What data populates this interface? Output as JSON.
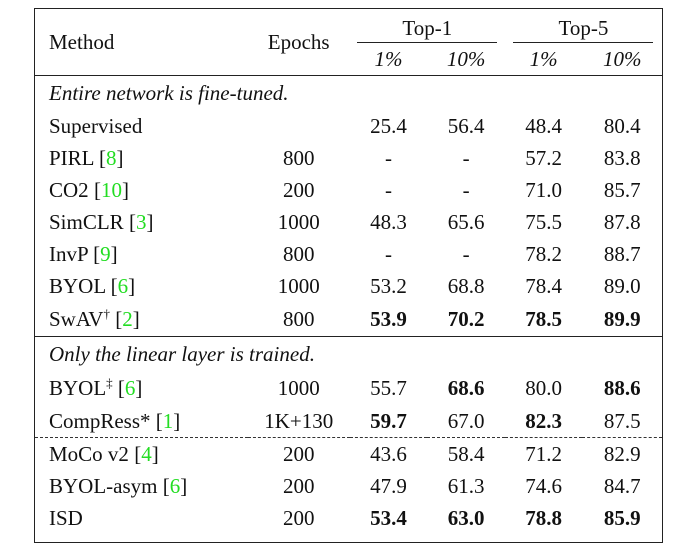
{
  "header": {
    "method": "Method",
    "epochs": "Epochs",
    "group1": "Top-1",
    "group2": "Top-5",
    "sub": [
      "1%",
      "10%",
      "1%",
      "10%"
    ]
  },
  "sections": [
    {
      "title": "Entire network is fine-tuned.",
      "rows": [
        {
          "name": "Supervised",
          "sup": "",
          "cite": "",
          "epochs": "",
          "v": [
            "25.4",
            "56.4",
            "48.4",
            "80.4"
          ],
          "bold": [
            false,
            false,
            false,
            false
          ]
        },
        {
          "name": "PIRL ",
          "sup": "",
          "cite": "8",
          "epochs": "800",
          "v": [
            "-",
            "-",
            "57.2",
            "83.8"
          ],
          "bold": [
            false,
            false,
            false,
            false
          ]
        },
        {
          "name": "CO2 ",
          "sup": "",
          "cite": "10",
          "epochs": "200",
          "v": [
            "-",
            "-",
            "71.0",
            "85.7"
          ],
          "bold": [
            false,
            false,
            false,
            false
          ]
        },
        {
          "name": "SimCLR ",
          "sup": "",
          "cite": "3",
          "epochs": "1000",
          "v": [
            "48.3",
            "65.6",
            "75.5",
            "87.8"
          ],
          "bold": [
            false,
            false,
            false,
            false
          ]
        },
        {
          "name": "InvP ",
          "sup": "",
          "cite": "9",
          "epochs": "800",
          "v": [
            "-",
            "-",
            "78.2",
            "88.7"
          ],
          "bold": [
            false,
            false,
            false,
            false
          ]
        },
        {
          "name": "BYOL ",
          "sup": "",
          "cite": "6",
          "epochs": "1000",
          "v": [
            "53.2",
            "68.8",
            "78.4",
            "89.0"
          ],
          "bold": [
            false,
            false,
            false,
            false
          ]
        },
        {
          "name": "SwAV",
          "sup": "†",
          "cite": "2",
          "epochs": "800",
          "v": [
            "53.9",
            "70.2",
            "78.5",
            "89.9"
          ],
          "bold": [
            true,
            true,
            true,
            true
          ]
        }
      ]
    },
    {
      "title": "Only the linear layer is trained.",
      "rows": [
        {
          "name": "BYOL",
          "sup": "‡",
          "cite": "6",
          "epochs": "1000",
          "v": [
            "55.7",
            "68.6",
            "80.0",
            "88.6"
          ],
          "bold": [
            false,
            true,
            false,
            true
          ]
        },
        {
          "name": "CompRess* ",
          "sup": "",
          "cite": "1",
          "epochs": "1K+130",
          "v": [
            "59.7",
            "67.0",
            "82.3",
            "87.5"
          ],
          "bold": [
            true,
            false,
            true,
            false
          ]
        }
      ]
    },
    {
      "title": "",
      "rows": [
        {
          "name": "MoCo v2 ",
          "sup": "",
          "cite": "4",
          "epochs": "200",
          "v": [
            "43.6",
            "58.4",
            "71.2",
            "82.9"
          ],
          "bold": [
            false,
            false,
            false,
            false
          ]
        },
        {
          "name": "BYOL-asym ",
          "sup": "",
          "cite": "6",
          "epochs": "200",
          "v": [
            "47.9",
            "61.3",
            "74.6",
            "84.7"
          ],
          "bold": [
            false,
            false,
            false,
            false
          ]
        },
        {
          "name": "ISD",
          "sup": "",
          "cite": "",
          "epochs": "200",
          "v": [
            "53.4",
            "63.0",
            "78.8",
            "85.9"
          ],
          "bold": [
            true,
            true,
            true,
            true
          ]
        }
      ]
    }
  ]
}
